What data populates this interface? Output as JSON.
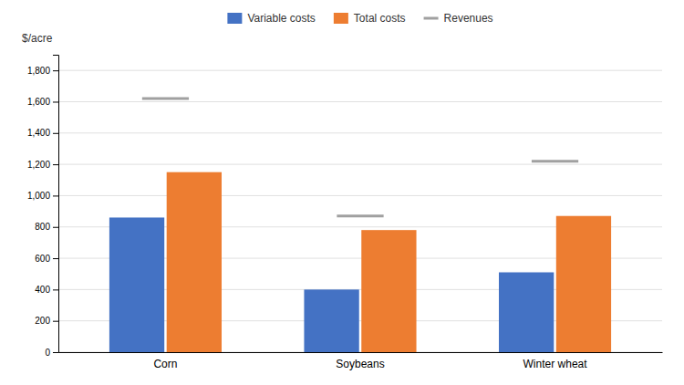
{
  "chart_data": {
    "type": "bar",
    "categories": [
      "Corn",
      "Soybeans",
      "Winter wheat"
    ],
    "series": [
      {
        "name": "Variable costs",
        "color": "#4472C4",
        "values": [
          860,
          400,
          510
        ]
      },
      {
        "name": "Total costs",
        "color": "#ED7D31",
        "values": [
          1150,
          780,
          870
        ]
      },
      {
        "name": "Revenues",
        "type": "scatter",
        "marker": "hline",
        "color": "#A0A0A0",
        "values": [
          1620,
          870,
          1220
        ]
      }
    ],
    "ylabel": "$/acre",
    "ylim": [
      0,
      1900
    ],
    "yticks": [
      0,
      200,
      400,
      600,
      800,
      {
        "value": 1000,
        "label": "1,000"
      },
      {
        "value": 1200,
        "label": "1,200"
      },
      {
        "value": 1400,
        "label": "1,400"
      },
      {
        "value": 1600,
        "label": "1,600"
      },
      {
        "value": 1800,
        "label": "1,800"
      }
    ],
    "grid": true,
    "legend": "top"
  }
}
